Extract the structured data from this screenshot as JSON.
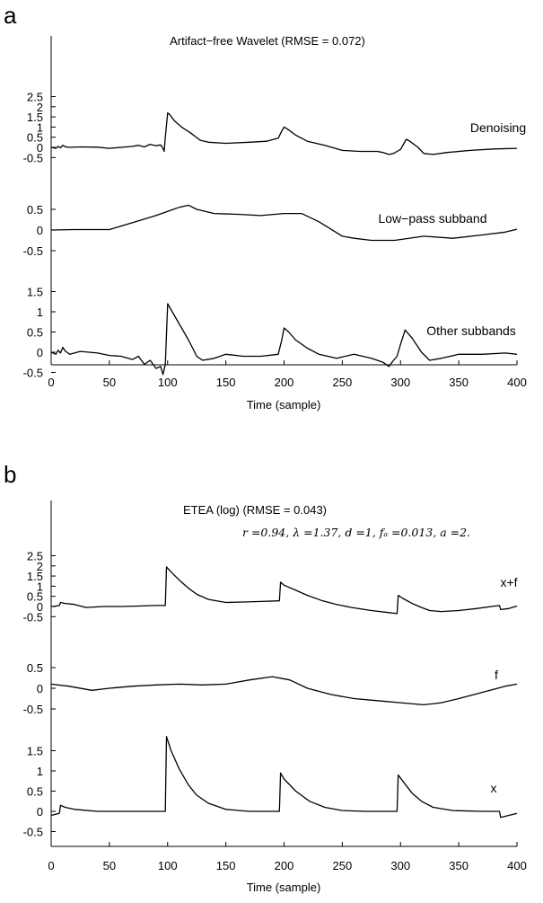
{
  "chart_data": [
    {
      "panel": "a",
      "type": "line",
      "title": "Artifact−free Wavelet (RMSE = 0.072)",
      "xlabel": "Time (sample)",
      "xlim": [
        0,
        400
      ],
      "xticks": [
        0,
        50,
        100,
        150,
        200,
        250,
        300,
        350,
        400
      ],
      "series": [
        {
          "name": "Denoising",
          "yticks": [
            "2.5",
            "2",
            "1.5",
            "1",
            "0.5",
            "0",
            "-0.5"
          ],
          "ylim": [
            -0.5,
            2.5
          ],
          "points": [
            [
              0,
              0
            ],
            [
              4,
              -0.05
            ],
            [
              6,
              0.05
            ],
            [
              8,
              -0.02
            ],
            [
              10,
              0.1
            ],
            [
              12,
              0.03
            ],
            [
              16,
              0
            ],
            [
              25,
              0.02
            ],
            [
              40,
              0.01
            ],
            [
              50,
              -0.05
            ],
            [
              60,
              0
            ],
            [
              70,
              0.05
            ],
            [
              75,
              0.1
            ],
            [
              80,
              0.02
            ],
            [
              85,
              0.15
            ],
            [
              90,
              0.08
            ],
            [
              94,
              0.12
            ],
            [
              96,
              -0.05
            ],
            [
              97,
              -0.2
            ],
            [
              98,
              0.5
            ],
            [
              100,
              1.7
            ],
            [
              102,
              1.6
            ],
            [
              106,
              1.3
            ],
            [
              112,
              1.0
            ],
            [
              120,
              0.7
            ],
            [
              128,
              0.35
            ],
            [
              135,
              0.25
            ],
            [
              150,
              0.2
            ],
            [
              170,
              0.25
            ],
            [
              185,
              0.3
            ],
            [
              195,
              0.45
            ],
            [
              198,
              0.8
            ],
            [
              200,
              1.0
            ],
            [
              203,
              0.9
            ],
            [
              210,
              0.6
            ],
            [
              220,
              0.3
            ],
            [
              235,
              0.1
            ],
            [
              250,
              -0.15
            ],
            [
              265,
              -0.2
            ],
            [
              280,
              -0.2
            ],
            [
              285,
              -0.25
            ],
            [
              290,
              -0.35
            ],
            [
              294,
              -0.3
            ],
            [
              297,
              -0.2
            ],
            [
              300,
              -0.1
            ],
            [
              305,
              0.4
            ],
            [
              308,
              0.3
            ],
            [
              315,
              0
            ],
            [
              320,
              -0.3
            ],
            [
              328,
              -0.35
            ],
            [
              340,
              -0.25
            ],
            [
              360,
              -0.15
            ],
            [
              380,
              -0.08
            ],
            [
              400,
              -0.05
            ]
          ]
        },
        {
          "name": "Low−pass subband",
          "yticks": [
            "0.5",
            "0",
            "-0.5"
          ],
          "ylim": [
            -0.5,
            0.5
          ],
          "points": [
            [
              0,
              0
            ],
            [
              20,
              0.01
            ],
            [
              50,
              0.01
            ],
            [
              70,
              0.18
            ],
            [
              90,
              0.35
            ],
            [
              100,
              0.45
            ],
            [
              110,
              0.55
            ],
            [
              118,
              0.6
            ],
            [
              125,
              0.5
            ],
            [
              140,
              0.4
            ],
            [
              160,
              0.38
            ],
            [
              180,
              0.35
            ],
            [
              200,
              0.4
            ],
            [
              215,
              0.4
            ],
            [
              230,
              0.2
            ],
            [
              250,
              -0.15
            ],
            [
              260,
              -0.2
            ],
            [
              275,
              -0.25
            ],
            [
              295,
              -0.25
            ],
            [
              320,
              -0.15
            ],
            [
              345,
              -0.2
            ],
            [
              370,
              -0.12
            ],
            [
              390,
              -0.05
            ],
            [
              400,
              0.02
            ]
          ]
        },
        {
          "name": "Other subbands",
          "yticks": [
            "1.5",
            "1",
            "0.5",
            "0",
            "-0.5"
          ],
          "ylim": [
            -0.6,
            1.5
          ],
          "points": [
            [
              0,
              0
            ],
            [
              4,
              -0.05
            ],
            [
              6,
              0.05
            ],
            [
              8,
              -0.02
            ],
            [
              10,
              0.12
            ],
            [
              12,
              0.03
            ],
            [
              16,
              -0.05
            ],
            [
              25,
              0.02
            ],
            [
              40,
              -0.02
            ],
            [
              50,
              -0.08
            ],
            [
              60,
              -0.1
            ],
            [
              70,
              -0.18
            ],
            [
              75,
              -0.1
            ],
            [
              80,
              -0.3
            ],
            [
              85,
              -0.2
            ],
            [
              90,
              -0.4
            ],
            [
              94,
              -0.35
            ],
            [
              96,
              -0.55
            ],
            [
              98,
              -0.3
            ],
            [
              100,
              1.2
            ],
            [
              104,
              1.0
            ],
            [
              110,
              0.7
            ],
            [
              118,
              0.3
            ],
            [
              125,
              -0.1
            ],
            [
              130,
              -0.2
            ],
            [
              140,
              -0.15
            ],
            [
              150,
              -0.05
            ],
            [
              165,
              -0.1
            ],
            [
              180,
              -0.1
            ],
            [
              195,
              -0.05
            ],
            [
              198,
              0.3
            ],
            [
              200,
              0.6
            ],
            [
              204,
              0.5
            ],
            [
              210,
              0.3
            ],
            [
              220,
              0.1
            ],
            [
              230,
              -0.05
            ],
            [
              245,
              -0.15
            ],
            [
              260,
              -0.05
            ],
            [
              275,
              -0.15
            ],
            [
              285,
              -0.25
            ],
            [
              290,
              -0.35
            ],
            [
              294,
              -0.2
            ],
            [
              297,
              -0.1
            ],
            [
              300,
              0.2
            ],
            [
              304,
              0.55
            ],
            [
              310,
              0.35
            ],
            [
              318,
              0
            ],
            [
              325,
              -0.2
            ],
            [
              335,
              -0.15
            ],
            [
              350,
              -0.05
            ],
            [
              370,
              -0.05
            ],
            [
              390,
              -0.02
            ],
            [
              400,
              -0.05
            ]
          ]
        }
      ]
    },
    {
      "panel": "b",
      "type": "line",
      "title": "ETEA (log) (RMSE = 0.043)",
      "params": "r =0.94, λ =1.37, d =1, fₐ =0.013, a =2.",
      "xlabel": "Time (sample)",
      "xlim": [
        0,
        400
      ],
      "xticks": [
        0,
        50,
        100,
        150,
        200,
        250,
        300,
        350,
        400
      ],
      "series": [
        {
          "name": "x+f",
          "yticks": [
            "2.5",
            "2",
            "1.5",
            "1",
            "0.5",
            "0",
            "-0.5"
          ],
          "ylim": [
            -0.5,
            2.5
          ],
          "points": [
            [
              0,
              0
            ],
            [
              4,
              0.02
            ],
            [
              7,
              0.05
            ],
            [
              8,
              0.2
            ],
            [
              12,
              0.15
            ],
            [
              20,
              0.1
            ],
            [
              30,
              -0.05
            ],
            [
              45,
              0
            ],
            [
              60,
              0
            ],
            [
              75,
              0.02
            ],
            [
              90,
              0.05
            ],
            [
              98,
              0.05
            ],
            [
              99,
              1.95
            ],
            [
              103,
              1.7
            ],
            [
              110,
              1.3
            ],
            [
              118,
              0.9
            ],
            [
              125,
              0.6
            ],
            [
              135,
              0.35
            ],
            [
              150,
              0.2
            ],
            [
              165,
              0.22
            ],
            [
              180,
              0.25
            ],
            [
              196,
              0.28
            ],
            [
              197,
              1.2
            ],
            [
              200,
              1.05
            ],
            [
              210,
              0.8
            ],
            [
              220,
              0.55
            ],
            [
              232,
              0.3
            ],
            [
              245,
              0.1
            ],
            [
              258,
              -0.05
            ],
            [
              275,
              -0.2
            ],
            [
              290,
              -0.3
            ],
            [
              297,
              -0.35
            ],
            [
              298,
              0.55
            ],
            [
              302,
              0.4
            ],
            [
              310,
              0.15
            ],
            [
              318,
              -0.05
            ],
            [
              325,
              -0.2
            ],
            [
              335,
              -0.25
            ],
            [
              350,
              -0.2
            ],
            [
              365,
              -0.1
            ],
            [
              378,
              0
            ],
            [
              385,
              0.05
            ],
            [
              386,
              -0.15
            ],
            [
              393,
              -0.1
            ],
            [
              400,
              0.02
            ]
          ]
        },
        {
          "name": "f",
          "yticks": [
            "0.5",
            "0",
            "-0.5"
          ],
          "ylim": [
            -0.5,
            0.5
          ],
          "points": [
            [
              0,
              0.1
            ],
            [
              15,
              0.05
            ],
            [
              35,
              -0.05
            ],
            [
              50,
              0
            ],
            [
              70,
              0.05
            ],
            [
              90,
              0.08
            ],
            [
              110,
              0.1
            ],
            [
              130,
              0.08
            ],
            [
              150,
              0.1
            ],
            [
              170,
              0.2
            ],
            [
              190,
              0.28
            ],
            [
              205,
              0.2
            ],
            [
              220,
              0
            ],
            [
              240,
              -0.15
            ],
            [
              260,
              -0.25
            ],
            [
              280,
              -0.3
            ],
            [
              300,
              -0.35
            ],
            [
              320,
              -0.4
            ],
            [
              335,
              -0.35
            ],
            [
              350,
              -0.25
            ],
            [
              370,
              -0.1
            ],
            [
              390,
              0.05
            ],
            [
              400,
              0.1
            ]
          ]
        },
        {
          "name": "x",
          "yticks": [
            "1.5",
            "1",
            "0.5",
            "0",
            "-0.5"
          ],
          "ylim": [
            -0.6,
            1.5
          ],
          "points": [
            [
              0,
              -0.1
            ],
            [
              7,
              -0.05
            ],
            [
              8,
              0.15
            ],
            [
              12,
              0.1
            ],
            [
              20,
              0.05
            ],
            [
              40,
              0
            ],
            [
              60,
              0
            ],
            [
              80,
              0
            ],
            [
              98,
              0
            ],
            [
              99,
              1.85
            ],
            [
              103,
              1.5
            ],
            [
              110,
              1.05
            ],
            [
              118,
              0.65
            ],
            [
              125,
              0.4
            ],
            [
              135,
              0.2
            ],
            [
              150,
              0.05
            ],
            [
              170,
              0
            ],
            [
              196,
              0
            ],
            [
              197,
              0.95
            ],
            [
              200,
              0.8
            ],
            [
              210,
              0.5
            ],
            [
              222,
              0.25
            ],
            [
              235,
              0.1
            ],
            [
              250,
              0.02
            ],
            [
              270,
              0
            ],
            [
              297,
              0
            ],
            [
              298,
              0.9
            ],
            [
              302,
              0.75
            ],
            [
              310,
              0.45
            ],
            [
              318,
              0.25
            ],
            [
              328,
              0.1
            ],
            [
              345,
              0.02
            ],
            [
              370,
              0
            ],
            [
              385,
              0
            ],
            [
              386,
              -0.15
            ],
            [
              393,
              -0.1
            ],
            [
              400,
              -0.05
            ]
          ]
        }
      ]
    }
  ],
  "icons": {}
}
